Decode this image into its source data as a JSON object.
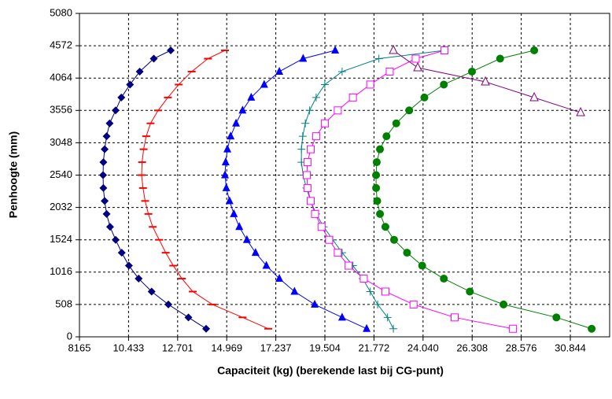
{
  "chart_data": {
    "type": "scatter",
    "x_label": "Capaciteit (kg) (berekende last bij CG-punt)",
    "y_label": "Penhoogte (mm)",
    "xlim": [
      8165,
      32660
    ],
    "ylim": [
      0,
      5080
    ],
    "xticks": [
      8165,
      {
        "value": 10433,
        "label": "10.433"
      },
      {
        "value": 12701,
        "label": "12.701"
      },
      {
        "value": 14969,
        "label": "14.969"
      },
      {
        "value": 17237,
        "label": "17.237"
      },
      {
        "value": 19504,
        "label": "19.504"
      },
      {
        "value": 21772,
        "label": "21.772"
      },
      {
        "value": 24040,
        "label": "24.040"
      },
      {
        "value": 26308,
        "label": "26.308"
      },
      {
        "value": 28576,
        "label": "28.576"
      },
      {
        "value": 30844,
        "label": "30.844"
      }
    ],
    "yticks": [
      0,
      508,
      1016,
      1524,
      2032,
      2540,
      3048,
      3556,
      4064,
      4572,
      5080
    ],
    "grid": true,
    "series": [
      {
        "color": "#000080",
        "marker": "diamond",
        "x": [
          14017,
          13200,
          12273,
          11500,
          10900,
          10450,
          10120,
          9837,
          9580,
          9420,
          9330,
          9270,
          9256,
          9270,
          9330,
          9420,
          9560,
          9837,
          10100,
          10500,
          10950,
          11600,
          12382
        ],
        "values": [
          127,
          305,
          508,
          711,
          914,
          1118,
          1321,
          1524,
          1727,
          1930,
          2134,
          2337,
          2540,
          2743,
          2946,
          3150,
          3353,
          3556,
          3759,
          3962,
          4166,
          4369,
          4499
        ]
      },
      {
        "color": "#ff0000",
        "marker": "dash",
        "x": [
          16889,
          15700,
          14308,
          13400,
          12900,
          12500,
          12150,
          11850,
          11550,
          11350,
          11200,
          11100,
          11037,
          11060,
          11130,
          11250,
          11450,
          11800,
          12250,
          12750,
          13350,
          14100,
          14890
        ],
        "values": [
          127,
          305,
          508,
          711,
          914,
          1118,
          1321,
          1524,
          1727,
          1930,
          2134,
          2337,
          2540,
          2743,
          2946,
          3150,
          3353,
          3556,
          3759,
          3962,
          4166,
          4369,
          4499
        ]
      },
      {
        "color": "#0000ff",
        "marker": "triangle",
        "x": [
          21433,
          20300,
          19034,
          18100,
          17400,
          16800,
          16300,
          15900,
          15550,
          15300,
          15100,
          14950,
          14890,
          14920,
          15000,
          15150,
          15400,
          15700,
          16100,
          16700,
          17400,
          18500,
          19979
        ],
        "values": [
          127,
          305,
          508,
          711,
          914,
          1118,
          1321,
          1524,
          1727,
          1930,
          2134,
          2337,
          2540,
          2743,
          2946,
          3150,
          3353,
          3556,
          3759,
          3962,
          4166,
          4369,
          4499
        ]
      },
      {
        "color": "#008080",
        "marker": "plus",
        "x": [
          22668,
          22400,
          21942,
          21600,
          21250,
          20800,
          20300,
          19870,
          19450,
          19100,
          18850,
          18650,
          18500,
          18420,
          18420,
          18480,
          18600,
          18800,
          19100,
          19500,
          20300,
          22000,
          25031
        ],
        "values": [
          127,
          305,
          508,
          711,
          914,
          1118,
          1321,
          1524,
          1727,
          1930,
          2134,
          2337,
          2540,
          2743,
          2946,
          3150,
          3353,
          3556,
          3759,
          3962,
          4166,
          4369,
          4499
        ]
      },
      {
        "color": "#ff00ff",
        "marker": "square-open",
        "x": [
          28194,
          25500,
          23600,
          22300,
          21300,
          20600,
          20100,
          19700,
          19350,
          19050,
          18850,
          18700,
          18670,
          18700,
          18850,
          19100,
          19500,
          20100,
          20800,
          21600,
          22500,
          23700,
          25031
        ],
        "values": [
          127,
          305,
          508,
          711,
          914,
          1118,
          1321,
          1524,
          1727,
          1930,
          2134,
          2337,
          2540,
          2743,
          2946,
          3150,
          3353,
          3556,
          3759,
          3962,
          4166,
          4369,
          4499
        ]
      },
      {
        "color": "#008000",
        "marker": "circle",
        "x": [
          31829,
          30200,
          27758,
          26200,
          25000,
          24000,
          23300,
          22700,
          22300,
          22050,
          21920,
          21870,
          21869,
          21900,
          22050,
          22350,
          22800,
          23400,
          24100,
          25000,
          26300,
          27600,
          29175
        ],
        "values": [
          127,
          305,
          508,
          711,
          914,
          1118,
          1321,
          1524,
          1727,
          1930,
          2134,
          2337,
          2540,
          2743,
          2946,
          3150,
          3353,
          3556,
          3759,
          3962,
          4166,
          4369,
          4499
        ]
      },
      {
        "color": "#800080",
        "marker": "triangle-open",
        "x": [
          22668,
          23795,
          26921,
          29175,
          31320
        ],
        "values": [
          4499,
          4227,
          4005,
          3757,
          3522
        ]
      }
    ]
  }
}
